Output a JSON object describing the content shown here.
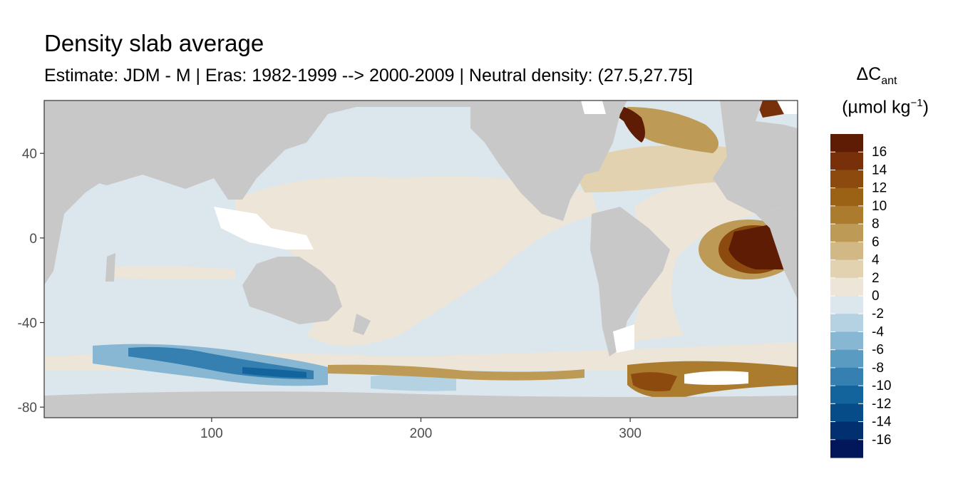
{
  "title": "Density slab average",
  "subtitle": "Estimate: JDM - M | Eras: 1982-1999 --> 2000-2009 | Neutral density: (27.5,27.75]",
  "legend": {
    "title_symbol": "ΔC",
    "title_sub": "ant",
    "title_unit_prefix": "(µmol kg",
    "title_unit_sup": "−1",
    "title_unit_suffix": ")",
    "colors": [
      "#5e1c05",
      "#77300a",
      "#8c4a0f",
      "#9b6115",
      "#ab7c2e",
      "#bd9a56",
      "#d1b884",
      "#e2d2b0",
      "#ede5d8",
      "#dce7ed",
      "#b5d2e2",
      "#88b7d3",
      "#5a9bc2",
      "#3580b1",
      "#13639c",
      "#054c88",
      "#022f6f",
      "#01175a"
    ],
    "labels": [
      "16",
      "14",
      "12",
      "10",
      "8",
      "6",
      "4",
      "2",
      "0",
      "-2",
      "-4",
      "-6",
      "-8",
      "-10",
      "-12",
      "-14",
      "-16"
    ]
  },
  "chart_data": {
    "type": "heatmap",
    "title": "Density slab average",
    "subtitle": "Estimate: JDM - M | Eras: 1982-1999 --> 2000-2009 | Neutral density: (27.5,27.75]",
    "xlim": [
      20,
      380
    ],
    "ylim": [
      -85,
      65
    ],
    "x_ticks": [
      100,
      200,
      300
    ],
    "y_ticks": [
      40,
      0,
      -40,
      -80
    ],
    "grid": false,
    "colorbar": {
      "variable": "ΔC_ant (µmol kg−1)",
      "breaks": [
        16,
        14,
        12,
        10,
        8,
        6,
        4,
        2,
        0,
        -2,
        -4,
        -6,
        -8,
        -10,
        -12,
        -14,
        -16
      ],
      "position": "right"
    },
    "land_color": "#c8c8c8",
    "missing_color": "#ffffff"
  }
}
